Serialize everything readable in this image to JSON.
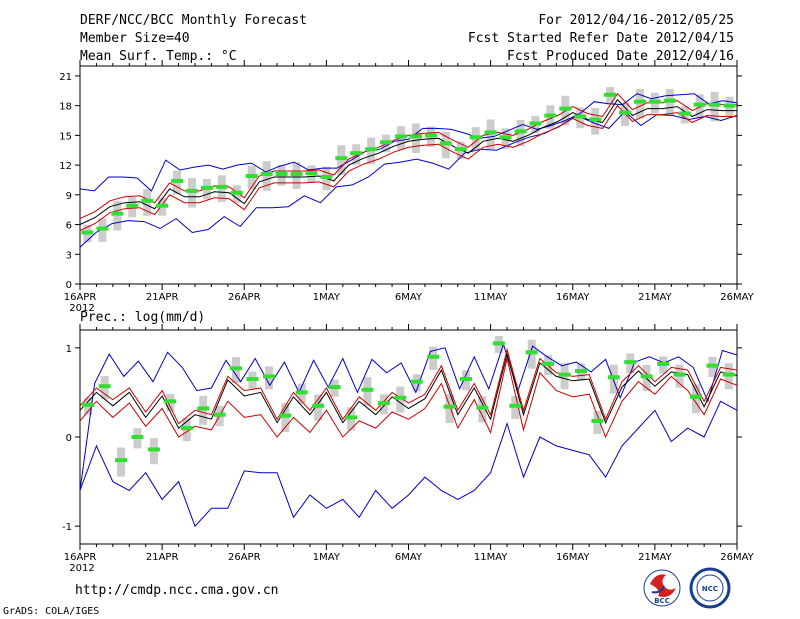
{
  "header": {
    "title": "DERF/NCC/BCC Monthly Forecast",
    "member_size": "Member Size=40",
    "variable": "Mean Surf. Temp.: °C",
    "period": "For 2012/04/16-2012/05/25",
    "start_date": "Fcst Started Refer Date 2012/04/15",
    "produced_date": "Fcst Produced Date 2012/04/16"
  },
  "bottom_title": "Prec.: log(mm/d)",
  "footer": {
    "url": "http://cmdp.ncc.cma.gov.cn",
    "grads": "GrADS: COLA/IGES",
    "logo_bcc": "BCC",
    "logo_ncc": "NCC"
  },
  "x_tick_labels": [
    "16APR",
    "21APR",
    "26APR",
    "1MAY",
    "6MAY",
    "11MAY",
    "16MAY",
    "21MAY",
    "26MAY"
  ],
  "x_year_label": "2012",
  "colors": {
    "box": "#cccccc",
    "median": "#33dd33",
    "mean": "#000000",
    "inner": "#cc0000",
    "outer": "#0000cc"
  },
  "chart_data": [
    {
      "type": "line",
      "title": "Mean Surf. Temp.: °C",
      "xlabel": "",
      "ylabel": "",
      "ylim": [
        0,
        22
      ],
      "yticks": [
        0,
        3,
        6,
        9,
        12,
        15,
        18,
        21
      ],
      "x_days": 40,
      "series": [
        {
          "name": "max",
          "values": [
            9.6,
            9.4,
            10.8,
            10.8,
            10.7,
            9.4,
            12.5,
            11.5,
            11.8,
            12.0,
            11.6,
            12.0,
            12.2,
            11.3,
            11.9,
            12.3,
            11.5,
            11.7,
            11.7,
            12.5,
            13.4,
            13.6,
            14.4,
            14.6,
            15.7,
            15.7,
            15.6,
            15.2,
            14.7,
            14.9,
            15.5,
            16.1,
            15.6,
            16.0,
            16.5,
            17.2,
            18.4,
            18.2,
            18.1,
            19.2,
            18.7,
            19.0,
            19.1,
            19.2,
            18.2,
            18.5,
            18.3
          ]
        },
        {
          "name": "upper",
          "values": [
            6.6,
            7.3,
            8.4,
            8.8,
            8.9,
            8.2,
            10.2,
            9.4,
            9.4,
            9.9,
            9.8,
            8.7,
            10.9,
            11.4,
            11.4,
            11.4,
            11.5,
            11.0,
            12.6,
            13.3,
            13.8,
            14.5,
            15.0,
            15.2,
            15.3,
            14.5,
            13.8,
            15.0,
            15.3,
            15.0,
            15.6,
            16.4,
            17.0,
            17.9,
            17.2,
            16.9,
            19.2,
            17.6,
            18.3,
            18.3,
            18.5,
            17.5,
            18.2,
            18.1,
            18.1
          ]
        },
        {
          "name": "mean",
          "values": [
            6.0,
            6.7,
            7.8,
            8.2,
            8.3,
            7.6,
            9.6,
            8.8,
            8.8,
            9.3,
            9.2,
            8.1,
            10.3,
            10.8,
            10.8,
            10.8,
            10.9,
            10.4,
            12.0,
            12.7,
            13.2,
            13.9,
            14.4,
            14.6,
            14.7,
            13.9,
            13.2,
            14.4,
            14.7,
            14.4,
            15.0,
            15.8,
            16.4,
            17.3,
            16.6,
            16.3,
            18.6,
            17.0,
            17.7,
            17.7,
            17.9,
            16.9,
            17.6,
            17.5,
            17.5
          ]
        },
        {
          "name": "lower",
          "values": [
            5.4,
            6.1,
            7.2,
            7.6,
            7.7,
            7.0,
            9.0,
            8.2,
            8.2,
            8.7,
            8.6,
            7.5,
            9.7,
            10.2,
            10.2,
            10.2,
            10.3,
            9.8,
            11.4,
            12.1,
            12.6,
            13.3,
            13.8,
            14.0,
            14.1,
            13.3,
            12.6,
            13.8,
            14.1,
            13.8,
            14.4,
            15.2,
            15.8,
            16.7,
            16.0,
            15.7,
            18.0,
            16.4,
            17.1,
            17.1,
            17.3,
            16.3,
            17.0,
            16.9,
            16.9
          ]
        },
        {
          "name": "min",
          "values": [
            3.7,
            5.2,
            6.1,
            6.4,
            6.3,
            5.6,
            6.6,
            5.2,
            5.5,
            6.8,
            5.8,
            7.7,
            7.7,
            7.8,
            8.9,
            8.2,
            9.8,
            10.0,
            10.8,
            12.1,
            12.3,
            12.6,
            12.2,
            11.6,
            13.2,
            13.6,
            13.5,
            14.2,
            14.8,
            15.2,
            16.0,
            17.0,
            16.3,
            15.7,
            17.4,
            16.0,
            17.1,
            17.0,
            16.6,
            16.9,
            16.5,
            17.0
          ]
        },
        {
          "name": "median",
          "values": [
            5.2,
            5.6,
            7.1,
            7.9,
            8.4,
            7.9,
            10.4,
            9.4,
            9.7,
            9.8,
            9.2,
            10.9,
            11.1,
            11.1,
            11.1,
            11.2,
            10.8,
            12.7,
            13.2,
            13.6,
            14.3,
            14.9,
            14.9,
            15.0,
            14.2,
            13.6,
            14.8,
            15.3,
            14.8,
            15.4,
            16.2,
            17.0,
            17.7,
            16.9,
            16.6,
            19.1,
            17.3,
            18.4,
            18.4,
            18.5,
            17.2,
            18.1,
            18.1,
            18.0
          ]
        }
      ]
    },
    {
      "type": "line",
      "title": "Prec.: log(mm/d)",
      "xlabel": "",
      "ylabel": "",
      "ylim": [
        -1.2,
        1.2
      ],
      "yticks": [
        -1,
        0,
        1
      ],
      "x_days": 40,
      "series": [
        {
          "name": "max",
          "values": [
            -0.6,
            0.6,
            0.93,
            0.68,
            0.85,
            0.62,
            0.95,
            0.78,
            0.52,
            0.55,
            0.86,
            0.62,
            0.88,
            0.58,
            0.84,
            0.5,
            0.86,
            0.56,
            0.88,
            0.5,
            0.87,
            0.72,
            0.83,
            0.5,
            0.96,
            1.0,
            0.54,
            0.9,
            0.54,
            1.04,
            0.52,
            1.02,
            0.9,
            0.8,
            0.84,
            0.73,
            0.87,
            0.44,
            0.84,
            0.9,
            0.83,
            0.9,
            0.78,
            0.4,
            0.97,
            0.92
          ]
        },
        {
          "name": "upper",
          "values": [
            0.35,
            0.55,
            0.42,
            0.55,
            0.28,
            0.52,
            0.15,
            0.3,
            0.25,
            0.68,
            0.52,
            0.55,
            0.2,
            0.5,
            0.3,
            0.55,
            0.2,
            0.45,
            0.3,
            0.5,
            0.38,
            0.48,
            0.8,
            0.3,
            0.6,
            0.25,
            0.98,
            0.3,
            0.88,
            0.72,
            0.68,
            0.7,
            0.2,
            0.62,
            0.8,
            0.62,
            0.78,
            0.75,
            0.4,
            0.78,
            0.75
          ]
        },
        {
          "name": "mean",
          "values": [
            0.3,
            0.5,
            0.35,
            0.5,
            0.22,
            0.46,
            0.1,
            0.25,
            0.2,
            0.64,
            0.46,
            0.5,
            0.16,
            0.45,
            0.25,
            0.5,
            0.16,
            0.4,
            0.25,
            0.45,
            0.32,
            0.43,
            0.75,
            0.25,
            0.55,
            0.2,
            0.93,
            0.25,
            0.83,
            0.68,
            0.63,
            0.65,
            0.16,
            0.56,
            0.74,
            0.57,
            0.73,
            0.7,
            0.34,
            0.73,
            0.69
          ]
        },
        {
          "name": "lower",
          "values": [
            0.18,
            0.4,
            0.22,
            0.38,
            0.12,
            0.32,
            0.0,
            0.12,
            0.08,
            0.4,
            0.22,
            0.25,
            0.0,
            0.22,
            0.05,
            0.3,
            0.0,
            0.18,
            0.1,
            0.28,
            0.2,
            0.32,
            0.6,
            0.1,
            0.42,
            0.05,
            0.88,
            0.08,
            0.72,
            0.52,
            0.45,
            0.48,
            0.0,
            0.4,
            0.62,
            0.48,
            0.68,
            0.52,
            0.25,
            0.65,
            0.58
          ]
        },
        {
          "name": "min",
          "values": [
            -0.6,
            -0.1,
            -0.5,
            -0.6,
            -0.4,
            -0.7,
            -0.5,
            -1.0,
            -0.8,
            -0.8,
            -0.38,
            -0.4,
            -0.4,
            -0.9,
            -0.65,
            -0.8,
            -0.7,
            -0.9,
            -0.6,
            -0.8,
            -0.65,
            -0.45,
            -0.6,
            -0.7,
            -0.6,
            -0.4,
            0.15,
            -0.45,
            0.0,
            -0.1,
            -0.15,
            -0.2,
            -0.45,
            -0.1,
            0.1,
            0.3,
            -0.05,
            0.1,
            0.0,
            0.4,
            0.3
          ]
        },
        {
          "name": "median",
          "values": [
            0.36,
            0.57,
            -0.26,
            0.0,
            -0.14,
            0.4,
            0.1,
            0.32,
            0.25,
            0.77,
            0.65,
            0.68,
            0.24,
            0.5,
            0.35,
            0.56,
            0.22,
            0.53,
            0.38,
            0.44,
            0.62,
            0.9,
            0.34,
            0.65,
            0.33,
            1.05,
            0.35,
            0.95,
            0.82,
            0.7,
            0.74,
            0.18,
            0.67,
            0.84,
            0.68,
            0.82,
            0.7,
            0.45,
            0.8,
            0.7
          ]
        }
      ]
    }
  ]
}
